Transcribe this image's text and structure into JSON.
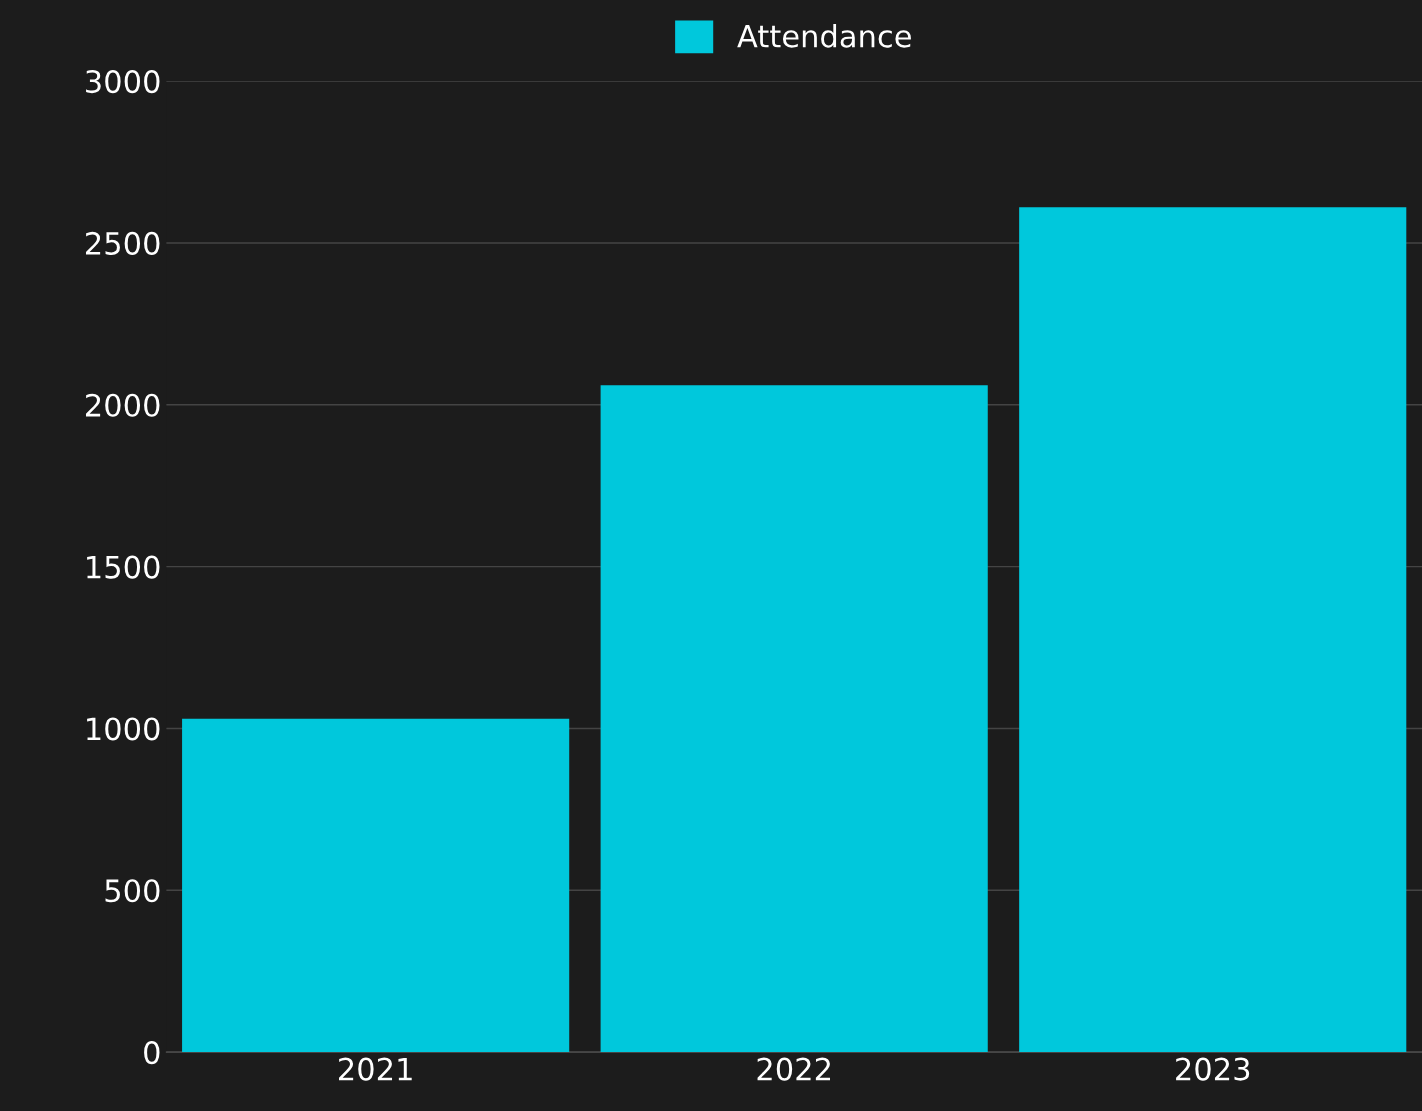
{
  "chart_data": {
    "type": "bar",
    "categories": [
      "2021",
      "2022",
      "2023"
    ],
    "series": [
      {
        "name": "Attendance",
        "color": "#00c8dc",
        "values": [
          1030,
          2060,
          2610
        ]
      }
    ],
    "ylim": [
      0,
      3000
    ],
    "yticks": [
      0,
      500,
      1000,
      1500,
      2000,
      2500,
      3000
    ],
    "grid": "y",
    "legend": "top"
  }
}
